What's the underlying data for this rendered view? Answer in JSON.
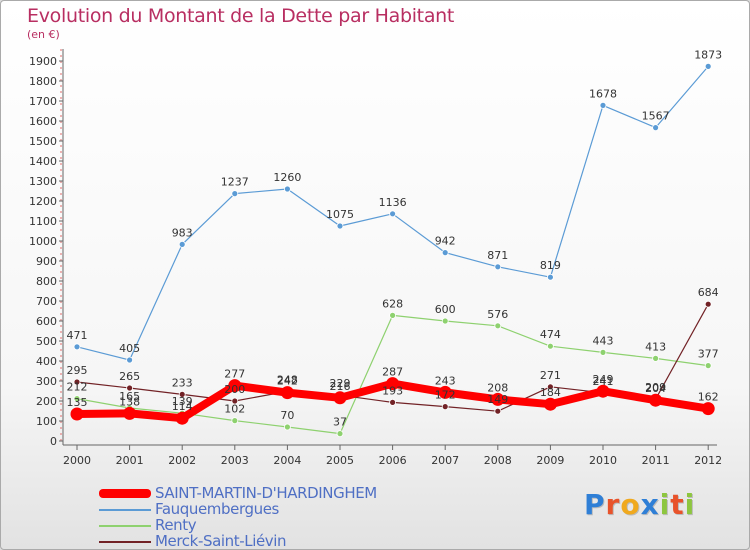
{
  "header": {
    "title": "Evolution du Montant de la Dette par Habitant",
    "unit": "(en €)"
  },
  "logo": {
    "text": "Proxiti",
    "colors": [
      "#2f7fd6",
      "#e8532b",
      "#f0a91e",
      "#2f7fd6",
      "#8dc63f",
      "#e8532b",
      "#8dc63f"
    ]
  },
  "chart_data": {
    "type": "line",
    "title": "Evolution du Montant de la Dette par Habitant",
    "ylabel": "(en €)",
    "xlabel": "",
    "x": [
      "2000",
      "2001",
      "2002",
      "2003",
      "2004",
      "2005",
      "2006",
      "2007",
      "2008",
      "2009",
      "2010",
      "2011",
      "2012"
    ],
    "ylim": [
      0,
      1900
    ],
    "yticks": [
      0,
      100,
      200,
      300,
      400,
      500,
      600,
      700,
      800,
      900,
      1000,
      1100,
      1200,
      1300,
      1400,
      1500,
      1600,
      1700,
      1800,
      1900
    ],
    "grid": false,
    "legend_position": "bottom-left",
    "series": [
      {
        "name": "Fauquembergues",
        "color": "#5b9bd5",
        "values": [
          471,
          405,
          983,
          1237,
          1260,
          1075,
          1136,
          942,
          871,
          819,
          1678,
          1567,
          1873
        ]
      },
      {
        "name": "Renty",
        "color": "#8ed16f",
        "values": [
          212,
          165,
          139,
          102,
          70,
          37,
          628,
          600,
          576,
          474,
          443,
          413,
          377
        ]
      },
      {
        "name": "Merck-Saint-Liévin",
        "color": "#722226",
        "values": [
          295,
          265,
          233,
          200,
          248,
          229,
          193,
          172,
          149,
          271,
          241,
          209,
          684
        ]
      },
      {
        "name": "SAINT-MARTIN-D'HARDINGHEM",
        "color": "#ff0000",
        "values": [
          135,
          138,
          114,
          277,
          242,
          216,
          287,
          243,
          208,
          184,
          249,
          204,
          162
        ]
      }
    ],
    "legend": [
      "SAINT-MARTIN-D'HARDINGHEM",
      "Fauquembergues",
      "Renty",
      "Merck-Saint-Liévin"
    ]
  }
}
